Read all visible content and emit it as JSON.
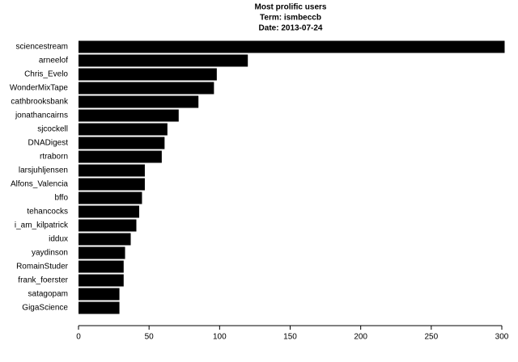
{
  "chart_data": {
    "type": "barh",
    "title": "Most prolific users",
    "subtitle": [
      "Term: ismbeccb",
      "Date: 2013-07-24"
    ],
    "categories": [
      "sciencestream",
      "arneelof",
      "Chris_Evelo",
      "WonderMixTape",
      "cathbrooksbank",
      "jonathancairns",
      "sjcockell",
      "DNADigest",
      "rtraborn",
      "larsjuhljensen",
      "Alfons_Valencia",
      "bffo",
      "tehancocks",
      "i_am_kilpatrick",
      "iddux",
      "yaydinson",
      "RomainStuder",
      "frank_foerster",
      "satagopam",
      "GigaScience"
    ],
    "values": [
      302,
      120,
      98,
      96,
      85,
      71,
      63,
      61,
      59,
      47,
      47,
      45,
      43,
      41,
      37,
      33,
      32,
      32,
      29,
      29
    ],
    "color": "#000000",
    "xlim": [
      0,
      300
    ],
    "xticks": [
      0,
      50,
      100,
      150,
      200,
      250,
      300
    ]
  }
}
